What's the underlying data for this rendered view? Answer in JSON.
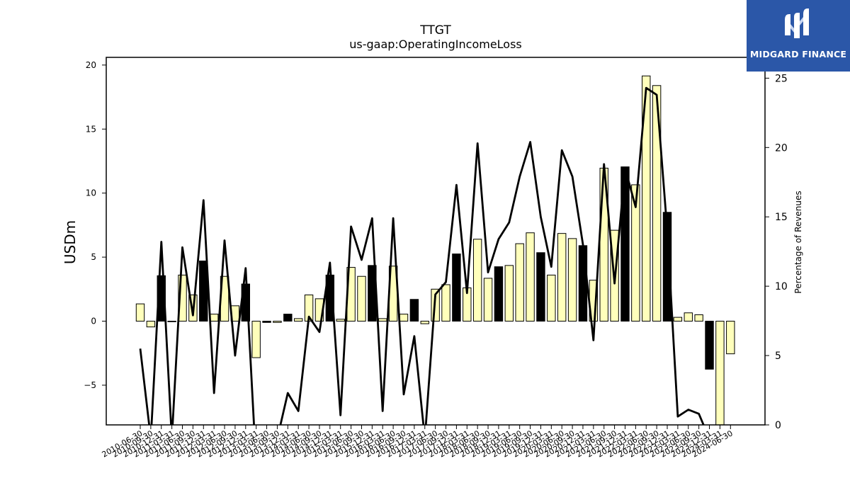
{
  "brand": {
    "name": "MIDGARD FINANCE",
    "logo_icon": "midgard-m-logo-icon",
    "background_color": "#2b57a8"
  },
  "chart_data": {
    "type": "bar",
    "title": "TTGT",
    "subtitle": "us-gaap:OperatingIncomeLoss",
    "ylabel": "USDm",
    "y2label": "Percentage of Revenues",
    "ylim": [
      -8.1,
      20.6
    ],
    "y2lim": [
      0,
      26.5
    ],
    "yticks": [
      -5,
      0,
      5,
      10,
      15,
      20
    ],
    "y2ticks": [
      0,
      5,
      10,
      15,
      20,
      25
    ],
    "ytick_labels": [
      "−5",
      "0",
      "5",
      "10",
      "15",
      "20"
    ],
    "y2tick_labels": [
      "0",
      "5",
      "10",
      "15",
      "20",
      "25"
    ],
    "xtick_labels": [
      "2010-06-30",
      "2010-09-30",
      "2010-12-31",
      "2011-03-31",
      "2011-06-30",
      "2011-09-30",
      "2011-12-31",
      "2012-03-31",
      "2012-06-30",
      "2012-09-30",
      "2012-12-31",
      "2013-03-31",
      "2013-06-30",
      "2013-09-30",
      "2013-12-31",
      "2014-03-31",
      "2014-06-30",
      "2014-09-30",
      "2014-12-31",
      "2015-03-31",
      "2015-06-30",
      "2015-09-30",
      "2015-12-31",
      "2016-03-31",
      "2016-06-30",
      "2016-09-30",
      "2016-12-31",
      "2017-03-31",
      "2017-06-30",
      "2017-09-30",
      "2017-12-31",
      "2018-03-31",
      "2018-06-30",
      "2018-09-30",
      "2018-12-31",
      "2019-03-31",
      "2019-06-30",
      "2019-09-30",
      "2019-12-31",
      "2020-03-31",
      "2020-06-30",
      "2020-09-30",
      "2020-12-31",
      "2021-03-31",
      "2021-06-30",
      "2021-09-30",
      "2021-12-31",
      "2022-03-31",
      "2022-06-30",
      "2022-09-30",
      "2022-12-31",
      "2023-03-31",
      "2023-06-30",
      "2023-09-30",
      "2023-12-31",
      "2024-03-31",
      "2024-06-30"
    ],
    "categories": [
      "2010-06-30",
      "2010-09-30",
      "2010-12-31",
      "2011-03-31",
      "2011-06-30",
      "2011-09-30",
      "2011-12-31",
      "2012-03-31",
      "2012-06-30",
      "2012-09-30",
      "2012-12-31",
      "2013-03-31",
      "2013-06-30",
      "2013-09-30",
      "2013-12-31",
      "2014-03-31",
      "2014-06-30",
      "2014-09-30",
      "2014-12-31",
      "2015-03-31",
      "2015-06-30",
      "2015-09-30",
      "2015-12-31",
      "2016-03-31",
      "2016-06-30",
      "2016-09-30",
      "2016-12-31",
      "2017-03-31",
      "2017-06-30",
      "2017-09-30",
      "2017-12-31",
      "2018-03-31",
      "2018-06-30",
      "2018-09-30",
      "2018-12-31",
      "2019-03-31",
      "2019-06-30",
      "2019-09-30",
      "2019-12-31",
      "2020-03-31",
      "2020-06-30",
      "2020-09-30",
      "2020-12-31",
      "2021-03-31",
      "2021-06-30",
      "2021-09-30",
      "2021-12-31",
      "2022-03-31",
      "2022-06-30",
      "2022-09-30",
      "2022-12-31",
      "2023-03-31",
      "2023-06-30",
      "2023-09-30",
      "2023-12-31",
      "2024-03-31",
      "2024-06-30"
    ],
    "series": [
      {
        "kind": "bar",
        "axis": "left",
        "values": [
          1.35,
          -0.45,
          3.55,
          0.0,
          3.6,
          2.05,
          4.7,
          0.55,
          3.5,
          1.2,
          2.9,
          -2.85,
          -0.1,
          -0.1,
          0.55,
          0.2,
          2.05,
          1.75,
          3.6,
          0.15,
          4.2,
          3.5,
          4.35,
          0.2,
          4.3,
          0.55,
          1.7,
          -0.2,
          2.5,
          2.85,
          5.25,
          2.6,
          6.4,
          3.35,
          4.25,
          4.35,
          6.05,
          6.9,
          5.35,
          3.6,
          6.85,
          6.45,
          5.9,
          3.2,
          11.95,
          7.1,
          12.05,
          10.65,
          19.15,
          18.4,
          8.5,
          0.3,
          0.65,
          0.5,
          -3.75,
          -8.1,
          -2.55
        ],
        "fill": [
          "y",
          "y",
          "b",
          "b",
          "y",
          "y",
          "b",
          "y",
          "y",
          "y",
          "b",
          "y",
          "b",
          "y",
          "b",
          "y",
          "y",
          "y",
          "b",
          "y",
          "y",
          "y",
          "b",
          "y",
          "y",
          "y",
          "b",
          "y",
          "y",
          "y",
          "b",
          "y",
          "y",
          "y",
          "b",
          "y",
          "y",
          "y",
          "b",
          "y",
          "y",
          "y",
          "b",
          "y",
          "y",
          "y",
          "b",
          "y",
          "y",
          "y",
          "b",
          "y",
          "y",
          "y",
          "b",
          "y",
          "y"
        ]
      },
      {
        "kind": "line",
        "axis": "right",
        "values": [
          5.5,
          -1.0,
          13.2,
          -1.0,
          12.8,
          7.9,
          16.2,
          2.3,
          13.3,
          5.0,
          11.3,
          -3.0,
          -1.5,
          -1.0,
          2.3,
          1.0,
          7.8,
          6.7,
          11.7,
          0.7,
          14.3,
          11.9,
          14.9,
          1.0,
          14.9,
          2.2,
          6.4,
          -1.0,
          9.4,
          10.3,
          17.3,
          9.5,
          20.3,
          11.0,
          13.4,
          14.6,
          17.9,
          20.4,
          15.0,
          11.4,
          19.8,
          17.9,
          13.0,
          6.1,
          18.8,
          10.2,
          18.5,
          15.7,
          24.3,
          23.8,
          14.0,
          0.6,
          1.1,
          0.8,
          -1.0,
          -1.0,
          -1.0
        ]
      }
    ],
    "colors": {
      "bar_light": "#ffffbb",
      "bar_dark": "#000000",
      "line": "#000000",
      "edge": "#000000"
    },
    "grid": false,
    "legend": "none"
  }
}
